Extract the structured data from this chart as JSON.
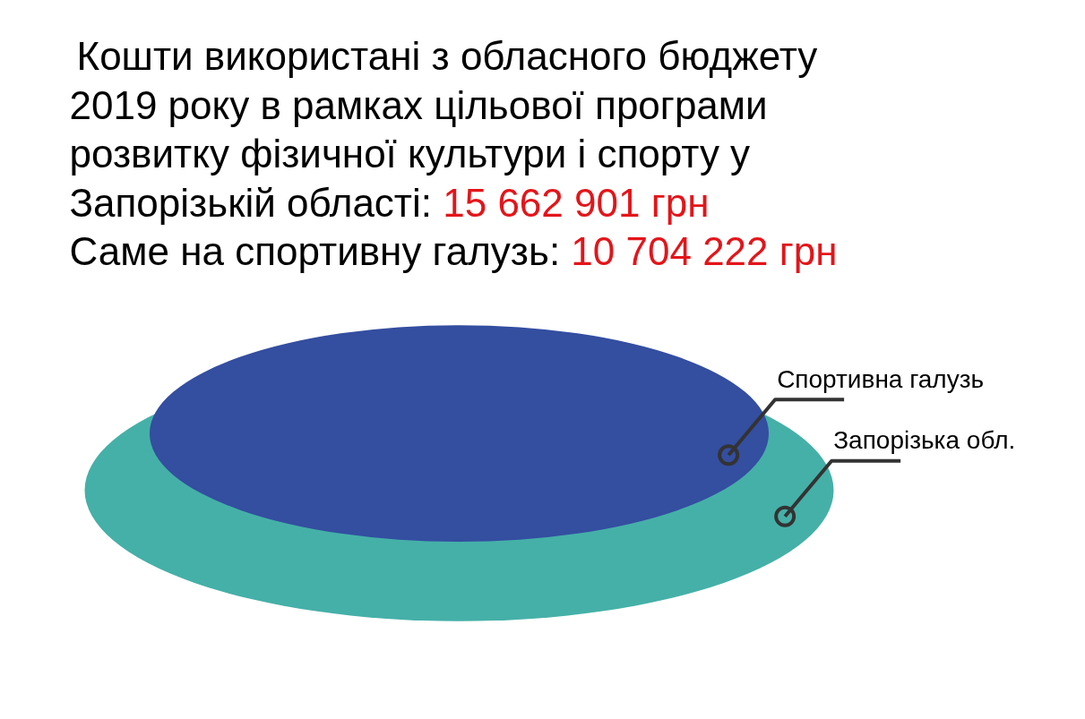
{
  "chart_data": {
    "type": "other",
    "title": "Кошти використані  з обласного бюджету\n2019 року в рамках цільової програми\nрозвитку фізичної культури і спорту у",
    "categories": [
      "Запорізькій області",
      "Саме на спортивну галузь"
    ],
    "values": [
      15662901,
      10704222
    ],
    "value_labels": [
      "15 662 901 грн",
      "10 704 222 грн"
    ],
    "colors": [
      "#45b0a8",
      "#344ea0"
    ],
    "annotations": [
      "Запорізька обл.",
      "Спортивна галузь",
      ":",
      ":"
    ]
  }
}
